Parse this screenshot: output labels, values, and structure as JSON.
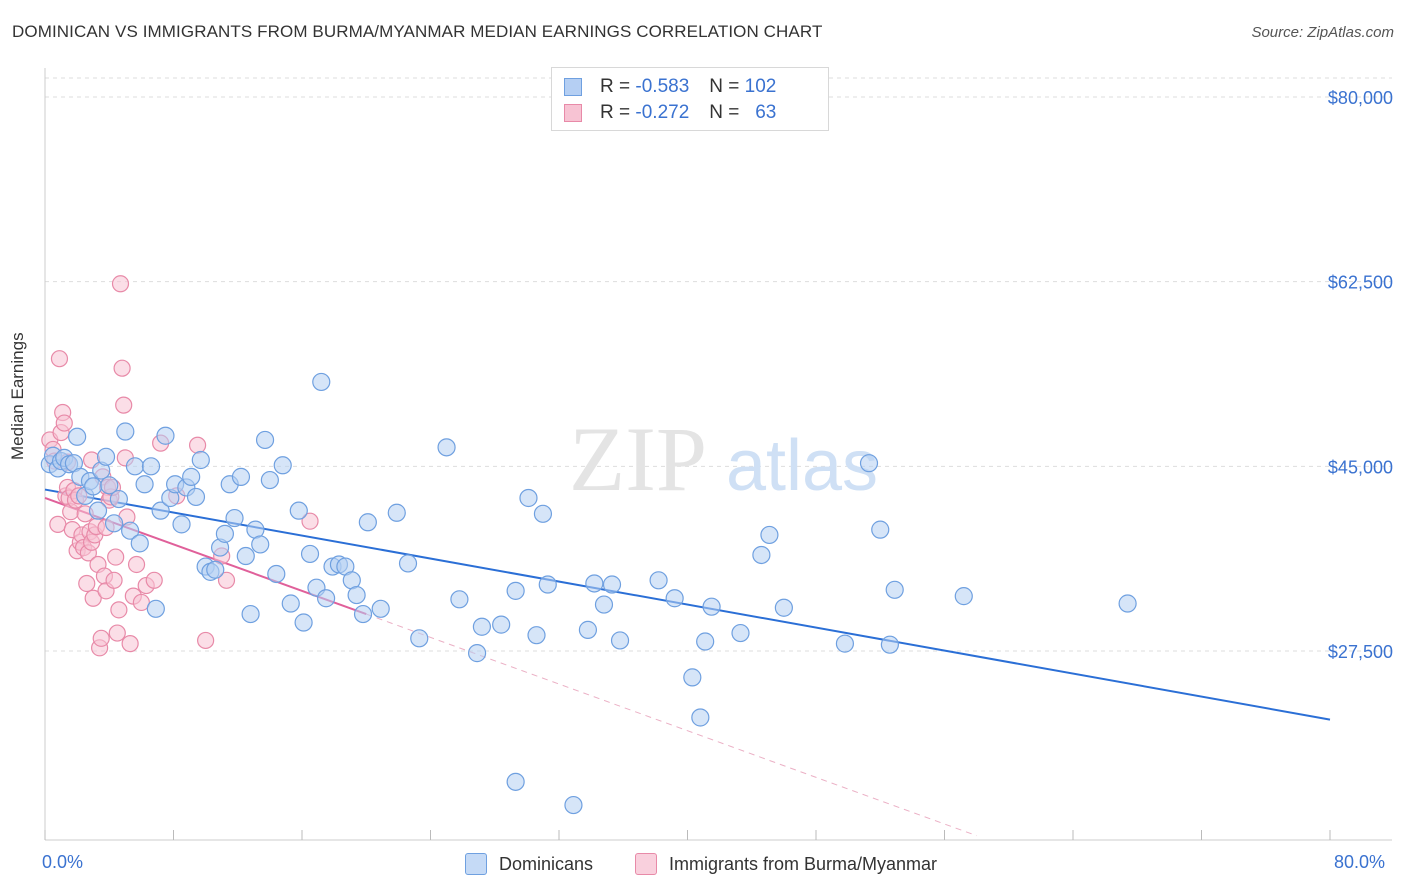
{
  "title": "DOMINICAN VS IMMIGRANTS FROM BURMA/MYANMAR MEDIAN EARNINGS CORRELATION CHART",
  "source": "Source: ZipAtlas.com",
  "watermark": {
    "part1": "ZIP",
    "part2": "atlas"
  },
  "legend_top": {
    "rows": [
      {
        "r_label": "R =",
        "r_value": "-0.583",
        "n_label": "N =",
        "n_value": "102"
      },
      {
        "r_label": "R =",
        "r_value": "-0.272",
        "n_label": "N =",
        "n_value": "63"
      }
    ]
  },
  "legend_bottom": {
    "items": [
      {
        "label": "Dominicans"
      },
      {
        "label": "Immigrants from Burma/Myanmar"
      }
    ]
  },
  "x_tick_labels": {
    "min": "0.0%",
    "max": "80.0%"
  },
  "colors": {
    "blue": "#6fa0e0",
    "blue_fill": "#b5cff3",
    "blue_line": "#2b6fd6",
    "pink": "#e88aa8",
    "pink_fill": "#f7c3d3",
    "pink_line": "#e0609a",
    "axis_label": "#3a72d0",
    "grid": "#dddddd"
  },
  "chart_data": {
    "type": "scatter",
    "title": "DOMINICAN VS IMMIGRANTS FROM BURMA/MYANMAR MEDIAN EARNINGS CORRELATION CHART",
    "xlabel": "",
    "ylabel": "Median Earnings",
    "xlim": [
      0,
      80
    ],
    "ylim": [
      10000,
      82000
    ],
    "y_ticks": [
      {
        "value": 27500,
        "label": "$27,500"
      },
      {
        "value": 45000,
        "label": "$45,000"
      },
      {
        "value": 62500,
        "label": "$62,500"
      },
      {
        "value": 80000,
        "label": "$80,000"
      }
    ],
    "grid": true,
    "series": [
      {
        "name": "Dominicans",
        "color": "#6fa0e0",
        "trend": {
          "x0": 0,
          "y0": 42800,
          "x1": 80,
          "y1": 21000
        },
        "points": [
          [
            0.3,
            45200
          ],
          [
            0.5,
            46000
          ],
          [
            0.8,
            44800
          ],
          [
            1.0,
            45500
          ],
          [
            1.2,
            45800
          ],
          [
            1.5,
            45200
          ],
          [
            1.8,
            45300
          ],
          [
            2.0,
            47800
          ],
          [
            2.2,
            44000
          ],
          [
            2.5,
            42200
          ],
          [
            2.8,
            43600
          ],
          [
            3.0,
            43100
          ],
          [
            3.3,
            40800
          ],
          [
            3.5,
            44600
          ],
          [
            3.8,
            45900
          ],
          [
            4.0,
            43200
          ],
          [
            4.3,
            39600
          ],
          [
            4.6,
            41900
          ],
          [
            5.0,
            48300
          ],
          [
            5.3,
            38900
          ],
          [
            5.6,
            45000
          ],
          [
            5.9,
            37700
          ],
          [
            6.2,
            43300
          ],
          [
            6.6,
            45000
          ],
          [
            6.9,
            31500
          ],
          [
            7.2,
            40800
          ],
          [
            7.5,
            47900
          ],
          [
            7.8,
            42000
          ],
          [
            8.1,
            43300
          ],
          [
            8.5,
            39500
          ],
          [
            8.8,
            43000
          ],
          [
            9.1,
            44000
          ],
          [
            9.4,
            42100
          ],
          [
            9.7,
            45600
          ],
          [
            10.0,
            35500
          ],
          [
            10.3,
            35000
          ],
          [
            10.6,
            35200
          ],
          [
            10.9,
            37300
          ],
          [
            11.2,
            38600
          ],
          [
            11.5,
            43300
          ],
          [
            11.8,
            40100
          ],
          [
            12.2,
            44000
          ],
          [
            12.5,
            36500
          ],
          [
            12.8,
            31000
          ],
          [
            13.1,
            39000
          ],
          [
            13.4,
            37600
          ],
          [
            13.7,
            47500
          ],
          [
            14.0,
            43700
          ],
          [
            14.4,
            34800
          ],
          [
            14.8,
            45100
          ],
          [
            15.3,
            32000
          ],
          [
            15.8,
            40800
          ],
          [
            16.1,
            30200
          ],
          [
            16.5,
            36700
          ],
          [
            16.9,
            33500
          ],
          [
            17.2,
            53000
          ],
          [
            17.5,
            32500
          ],
          [
            17.9,
            35500
          ],
          [
            18.3,
            35700
          ],
          [
            18.7,
            35500
          ],
          [
            19.1,
            34200
          ],
          [
            19.4,
            32800
          ],
          [
            19.8,
            31000
          ],
          [
            20.1,
            39700
          ],
          [
            20.9,
            31500
          ],
          [
            21.9,
            40600
          ],
          [
            22.6,
            35800
          ],
          [
            23.3,
            28700
          ],
          [
            25.0,
            46800
          ],
          [
            25.8,
            32400
          ],
          [
            26.9,
            27300
          ],
          [
            27.2,
            29800
          ],
          [
            28.4,
            30000
          ],
          [
            29.3,
            33200
          ],
          [
            30.1,
            42000
          ],
          [
            31.0,
            40500
          ],
          [
            30.6,
            29000
          ],
          [
            31.3,
            33800
          ],
          [
            33.8,
            29500
          ],
          [
            34.2,
            33900
          ],
          [
            34.8,
            31900
          ],
          [
            35.3,
            33800
          ],
          [
            35.8,
            28500
          ],
          [
            38.2,
            34200
          ],
          [
            39.2,
            32500
          ],
          [
            40.3,
            25000
          ],
          [
            40.8,
            21200
          ],
          [
            41.1,
            28400
          ],
          [
            41.5,
            31700
          ],
          [
            43.3,
            29200
          ],
          [
            44.6,
            36600
          ],
          [
            45.1,
            38500
          ],
          [
            46.0,
            31600
          ],
          [
            32.9,
            12900
          ],
          [
            29.3,
            15100
          ],
          [
            49.8,
            28200
          ],
          [
            51.3,
            45300
          ],
          [
            52.0,
            39000
          ],
          [
            52.6,
            28100
          ],
          [
            52.9,
            33300
          ],
          [
            57.2,
            32700
          ],
          [
            67.4,
            32000
          ]
        ]
      },
      {
        "name": "Immigrants from Burma/Myanmar",
        "color": "#e88aa8",
        "trend": {
          "x0": 0,
          "y0": 42000,
          "x1": 20,
          "y1": 31000,
          "dash_to_x": 58,
          "dash_to_y": 10000
        },
        "points": [
          [
            0.3,
            47500
          ],
          [
            0.5,
            46600
          ],
          [
            0.6,
            45500
          ],
          [
            0.8,
            39500
          ],
          [
            0.9,
            55200
          ],
          [
            1.0,
            48200
          ],
          [
            1.1,
            50100
          ],
          [
            1.2,
            49100
          ],
          [
            1.3,
            42200
          ],
          [
            1.4,
            43000
          ],
          [
            1.5,
            42000
          ],
          [
            1.6,
            40700
          ],
          [
            1.7,
            39000
          ],
          [
            1.8,
            42700
          ],
          [
            1.9,
            41800
          ],
          [
            2.0,
            37000
          ],
          [
            2.1,
            42200
          ],
          [
            2.2,
            37800
          ],
          [
            2.3,
            38500
          ],
          [
            2.4,
            37300
          ],
          [
            2.5,
            40500
          ],
          [
            2.6,
            33900
          ],
          [
            2.7,
            36800
          ],
          [
            2.8,
            38800
          ],
          [
            2.9,
            37800
          ],
          [
            3.0,
            32500
          ],
          [
            3.1,
            38500
          ],
          [
            3.2,
            39300
          ],
          [
            3.3,
            35700
          ],
          [
            3.4,
            27800
          ],
          [
            3.5,
            28700
          ],
          [
            3.6,
            44000
          ],
          [
            3.7,
            34600
          ],
          [
            3.8,
            33200
          ],
          [
            3.9,
            43000
          ],
          [
            4.0,
            41800
          ],
          [
            4.1,
            42100
          ],
          [
            4.2,
            43000
          ],
          [
            4.3,
            34200
          ],
          [
            4.4,
            36400
          ],
          [
            4.5,
            29200
          ],
          [
            4.6,
            31400
          ],
          [
            4.7,
            62300
          ],
          [
            4.8,
            54300
          ],
          [
            4.9,
            50800
          ],
          [
            5.0,
            45800
          ],
          [
            5.1,
            40200
          ],
          [
            5.3,
            28200
          ],
          [
            5.5,
            32700
          ],
          [
            5.7,
            35700
          ],
          [
            6.0,
            32100
          ],
          [
            6.3,
            33700
          ],
          [
            6.8,
            34200
          ],
          [
            7.2,
            47200
          ],
          [
            8.2,
            42200
          ],
          [
            9.5,
            47000
          ],
          [
            10.0,
            28500
          ],
          [
            11.0,
            36500
          ],
          [
            11.3,
            34200
          ],
          [
            16.5,
            39800
          ],
          [
            1.4,
            45400
          ],
          [
            2.9,
            45600
          ],
          [
            3.8,
            39200
          ]
        ]
      }
    ]
  }
}
